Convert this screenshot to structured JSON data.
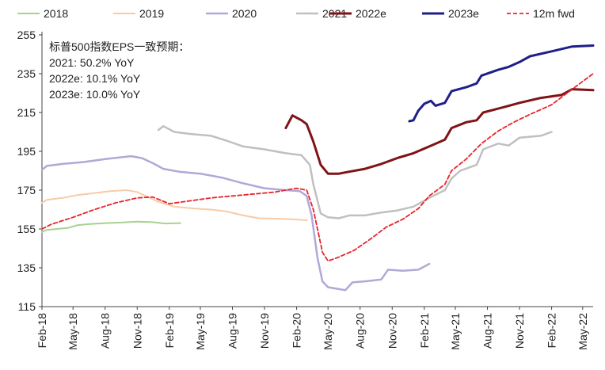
{
  "chart_data": {
    "type": "line",
    "title": "",
    "xlabel": "",
    "ylabel": "",
    "ylim": [
      115,
      255
    ],
    "yticks": [
      115,
      135,
      155,
      175,
      195,
      215,
      235,
      255
    ],
    "xlim": [
      "2018-02-01",
      "2022-05-31"
    ],
    "xtick_labels": [
      "Feb-18",
      "May-18",
      "Aug-18",
      "Nov-18",
      "Feb-19",
      "May-19",
      "Aug-19",
      "Nov-19",
      "Feb-20",
      "May-20",
      "Aug-20",
      "Nov-20",
      "Feb-21",
      "May-21",
      "Aug-21",
      "Nov-21",
      "Feb-22",
      "May-22"
    ],
    "xtick_dates": [
      "2018-02-01",
      "2018-05-01",
      "2018-08-01",
      "2018-11-01",
      "2019-02-01",
      "2019-05-01",
      "2019-08-01",
      "2019-11-01",
      "2020-02-01",
      "2020-05-01",
      "2020-08-01",
      "2020-11-01",
      "2021-02-01",
      "2021-05-01",
      "2021-08-01",
      "2021-11-01",
      "2022-02-01",
      "2022-05-01"
    ],
    "legend_position": "top",
    "grid": false,
    "annotation": {
      "lines": [
        "标普500指数EPS一致预期：",
        "2021: 50.2% YoY",
        "2022e: 10.1% YoY",
        "2023e: 10.0% YoY"
      ]
    },
    "series": [
      {
        "name": "2018",
        "color": "#a9d18e",
        "dash": "solid",
        "width": 2,
        "points": [
          [
            "2018-02-01",
            153.5
          ],
          [
            "2018-02-15",
            154.5
          ],
          [
            "2018-03-15",
            155
          ],
          [
            "2018-04-15",
            155.5
          ],
          [
            "2018-05-15",
            157
          ],
          [
            "2018-06-15",
            157.5
          ],
          [
            "2018-08-01",
            158
          ],
          [
            "2018-09-15",
            158.3
          ],
          [
            "2018-11-01",
            158.8
          ],
          [
            "2018-12-15",
            158.5
          ],
          [
            "2019-01-20",
            157.8
          ],
          [
            "2019-03-05",
            158
          ]
        ]
      },
      {
        "name": "2019",
        "color": "#f8cba7",
        "dash": "solid",
        "width": 2,
        "points": [
          [
            "2018-02-01",
            168.5
          ],
          [
            "2018-02-15",
            170
          ],
          [
            "2018-04-01",
            171
          ],
          [
            "2018-05-15",
            172.5
          ],
          [
            "2018-07-01",
            173.5
          ],
          [
            "2018-08-15",
            174.5
          ],
          [
            "2018-10-01",
            175
          ],
          [
            "2018-11-01",
            174
          ],
          [
            "2018-12-01",
            171.5
          ],
          [
            "2019-01-01",
            169
          ],
          [
            "2019-02-15",
            166.5
          ],
          [
            "2019-04-15",
            165.5
          ],
          [
            "2019-06-01",
            165
          ],
          [
            "2019-07-15",
            164
          ],
          [
            "2019-09-01",
            162
          ],
          [
            "2019-10-15",
            160.5
          ],
          [
            "2020-01-01",
            160.2
          ],
          [
            "2020-03-01",
            159.5
          ]
        ]
      },
      {
        "name": "2020",
        "color": "#b4a7d6",
        "dash": "solid",
        "width": 2.5,
        "points": [
          [
            "2018-02-01",
            185.5
          ],
          [
            "2018-02-15",
            187.5
          ],
          [
            "2018-04-01",
            188.5
          ],
          [
            "2018-06-01",
            189.5
          ],
          [
            "2018-08-01",
            191
          ],
          [
            "2018-10-15",
            192.5
          ],
          [
            "2018-11-15",
            191.5
          ],
          [
            "2018-12-15",
            189
          ],
          [
            "2019-01-15",
            186
          ],
          [
            "2019-03-01",
            184.5
          ],
          [
            "2019-05-01",
            183.5
          ],
          [
            "2019-07-01",
            181.5
          ],
          [
            "2019-09-01",
            178.5
          ],
          [
            "2019-11-01",
            176
          ],
          [
            "2020-01-01",
            175
          ],
          [
            "2020-02-10",
            174.5
          ],
          [
            "2020-03-01",
            172
          ],
          [
            "2020-03-15",
            162
          ],
          [
            "2020-04-01",
            140
          ],
          [
            "2020-04-15",
            128
          ],
          [
            "2020-05-01",
            125
          ],
          [
            "2020-06-01",
            124
          ],
          [
            "2020-06-20",
            123.5
          ],
          [
            "2020-07-10",
            127.5
          ],
          [
            "2020-08-15",
            128
          ],
          [
            "2020-10-01",
            129
          ],
          [
            "2020-10-20",
            134
          ],
          [
            "2020-12-01",
            133.5
          ],
          [
            "2021-01-15",
            134
          ],
          [
            "2021-02-15",
            137
          ]
        ]
      },
      {
        "name": "2021",
        "color": "#c0c0c0",
        "dash": "solid",
        "width": 2.5,
        "points": [
          [
            "2019-01-01",
            206
          ],
          [
            "2019-01-15",
            208
          ],
          [
            "2019-02-15",
            205
          ],
          [
            "2019-04-01",
            204
          ],
          [
            "2019-06-01",
            203
          ],
          [
            "2019-07-15",
            200.5
          ],
          [
            "2019-09-01",
            197.5
          ],
          [
            "2019-11-01",
            196
          ],
          [
            "2020-01-01",
            194
          ],
          [
            "2020-02-15",
            193
          ],
          [
            "2020-03-10",
            188
          ],
          [
            "2020-03-20",
            178
          ],
          [
            "2020-04-10",
            163
          ],
          [
            "2020-05-01",
            161
          ],
          [
            "2020-06-01",
            160.5
          ],
          [
            "2020-07-01",
            162
          ],
          [
            "2020-08-15",
            162
          ],
          [
            "2020-10-01",
            163.5
          ],
          [
            "2020-11-15",
            164.5
          ],
          [
            "2021-01-01",
            166.5
          ],
          [
            "2021-02-15",
            171
          ],
          [
            "2021-04-01",
            175
          ],
          [
            "2021-04-20",
            181
          ],
          [
            "2021-05-15",
            185
          ],
          [
            "2021-07-01",
            188
          ],
          [
            "2021-07-20",
            196
          ],
          [
            "2021-09-01",
            199
          ],
          [
            "2021-10-01",
            198
          ],
          [
            "2021-11-01",
            202
          ],
          [
            "2022-01-01",
            203
          ],
          [
            "2022-02-01",
            205
          ]
        ]
      },
      {
        "name": "2022e",
        "color": "#7f1315",
        "dash": "solid",
        "width": 3,
        "points": [
          [
            "2020-01-01",
            207
          ],
          [
            "2020-01-20",
            213.5
          ],
          [
            "2020-02-15",
            211
          ],
          [
            "2020-03-01",
            209
          ],
          [
            "2020-03-20",
            200
          ],
          [
            "2020-04-10",
            188
          ],
          [
            "2020-05-01",
            183.5
          ],
          [
            "2020-06-01",
            183.5
          ],
          [
            "2020-07-01",
            184.5
          ],
          [
            "2020-08-15",
            186
          ],
          [
            "2020-10-01",
            188.5
          ],
          [
            "2020-11-15",
            191.5
          ],
          [
            "2021-01-01",
            194
          ],
          [
            "2021-02-15",
            197.5
          ],
          [
            "2021-04-01",
            201
          ],
          [
            "2021-04-20",
            207
          ],
          [
            "2021-06-01",
            210
          ],
          [
            "2021-07-01",
            211
          ],
          [
            "2021-07-20",
            215
          ],
          [
            "2021-09-01",
            217
          ],
          [
            "2021-11-01",
            220
          ],
          [
            "2022-01-01",
            222.5
          ],
          [
            "2022-03-01",
            224
          ],
          [
            "2022-04-01",
            227
          ],
          [
            "2022-05-31",
            226.5
          ]
        ]
      },
      {
        "name": "2023e",
        "color": "#1f1f8a",
        "dash": "solid",
        "width": 3,
        "points": [
          [
            "2020-12-20",
            210.5
          ],
          [
            "2021-01-01",
            211
          ],
          [
            "2021-01-15",
            216
          ],
          [
            "2021-02-01",
            219.5
          ],
          [
            "2021-02-20",
            221
          ],
          [
            "2021-03-05",
            218.5
          ],
          [
            "2021-04-01",
            220
          ],
          [
            "2021-04-20",
            226
          ],
          [
            "2021-06-01",
            228
          ],
          [
            "2021-07-01",
            230
          ],
          [
            "2021-07-15",
            234
          ],
          [
            "2021-09-01",
            237
          ],
          [
            "2021-10-01",
            238.5
          ],
          [
            "2021-11-01",
            241
          ],
          [
            "2021-12-01",
            244
          ],
          [
            "2022-02-01",
            246.5
          ],
          [
            "2022-04-01",
            249
          ],
          [
            "2022-05-31",
            249.5
          ]
        ]
      },
      {
        "name": "12m fwd",
        "color": "#e8242c",
        "dash": "dashed",
        "width": 1.8,
        "points": [
          [
            "2018-02-01",
            155
          ],
          [
            "2018-03-01",
            157.5
          ],
          [
            "2018-05-01",
            161
          ],
          [
            "2018-07-01",
            165
          ],
          [
            "2018-09-01",
            168.5
          ],
          [
            "2018-11-01",
            171
          ],
          [
            "2018-12-15",
            171.5
          ],
          [
            "2019-02-01",
            168
          ],
          [
            "2019-04-01",
            169.5
          ],
          [
            "2019-06-01",
            171
          ],
          [
            "2019-08-01",
            172
          ],
          [
            "2019-10-01",
            173
          ],
          [
            "2019-12-01",
            174
          ],
          [
            "2020-02-01",
            176
          ],
          [
            "2020-03-01",
            175
          ],
          [
            "2020-03-20",
            165
          ],
          [
            "2020-04-15",
            143
          ],
          [
            "2020-05-01",
            138.5
          ],
          [
            "2020-06-01",
            140.5
          ],
          [
            "2020-07-15",
            144
          ],
          [
            "2020-09-01",
            150
          ],
          [
            "2020-10-15",
            156
          ],
          [
            "2020-12-01",
            160
          ],
          [
            "2021-01-15",
            165.5
          ],
          [
            "2021-02-15",
            172
          ],
          [
            "2021-04-01",
            178
          ],
          [
            "2021-04-20",
            185
          ],
          [
            "2021-06-01",
            191
          ],
          [
            "2021-07-15",
            199
          ],
          [
            "2021-09-01",
            205.5
          ],
          [
            "2021-10-15",
            210
          ],
          [
            "2021-12-01",
            214
          ],
          [
            "2022-02-01",
            219
          ],
          [
            "2022-04-01",
            227
          ],
          [
            "2022-05-31",
            235
          ]
        ]
      }
    ]
  }
}
